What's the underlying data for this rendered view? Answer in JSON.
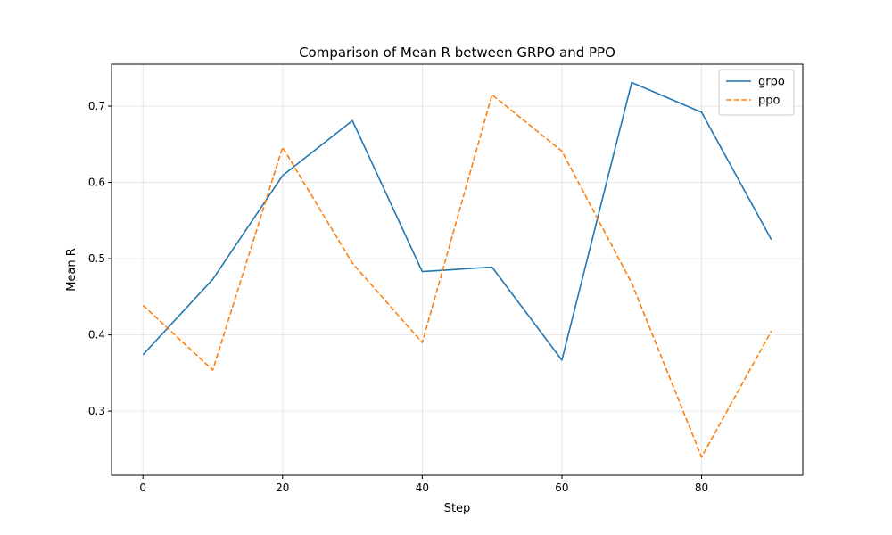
{
  "chart_data": {
    "type": "line",
    "title": "Comparison of Mean R between GRPO and PPO",
    "xlabel": "Step",
    "ylabel": "Mean R",
    "xlim": [
      -4.5,
      94.5
    ],
    "ylim": [
      0.216,
      0.755
    ],
    "x_ticks": [
      0,
      20,
      40,
      60,
      80
    ],
    "y_ticks": [
      0.3,
      0.4,
      0.5,
      0.6,
      0.7
    ],
    "x_tick_labels": [
      "0",
      "20",
      "40",
      "60",
      "80"
    ],
    "y_tick_labels": [
      "0.3",
      "0.4",
      "0.5",
      "0.6",
      "0.7"
    ],
    "grid": true,
    "legend_position": "top-right",
    "x": [
      0,
      10,
      20,
      30,
      40,
      50,
      60,
      70,
      80,
      90
    ],
    "series": [
      {
        "name": "grpo",
        "color": "#1f77b4",
        "style": "solid",
        "values": [
          0.374,
          0.473,
          0.609,
          0.681,
          0.483,
          0.489,
          0.367,
          0.731,
          0.692,
          0.525
        ]
      },
      {
        "name": "ppo",
        "color": "#ff7f0e",
        "style": "dashed",
        "values": [
          0.439,
          0.354,
          0.646,
          0.494,
          0.39,
          0.715,
          0.641,
          0.468,
          0.24,
          0.405
        ]
      }
    ]
  }
}
